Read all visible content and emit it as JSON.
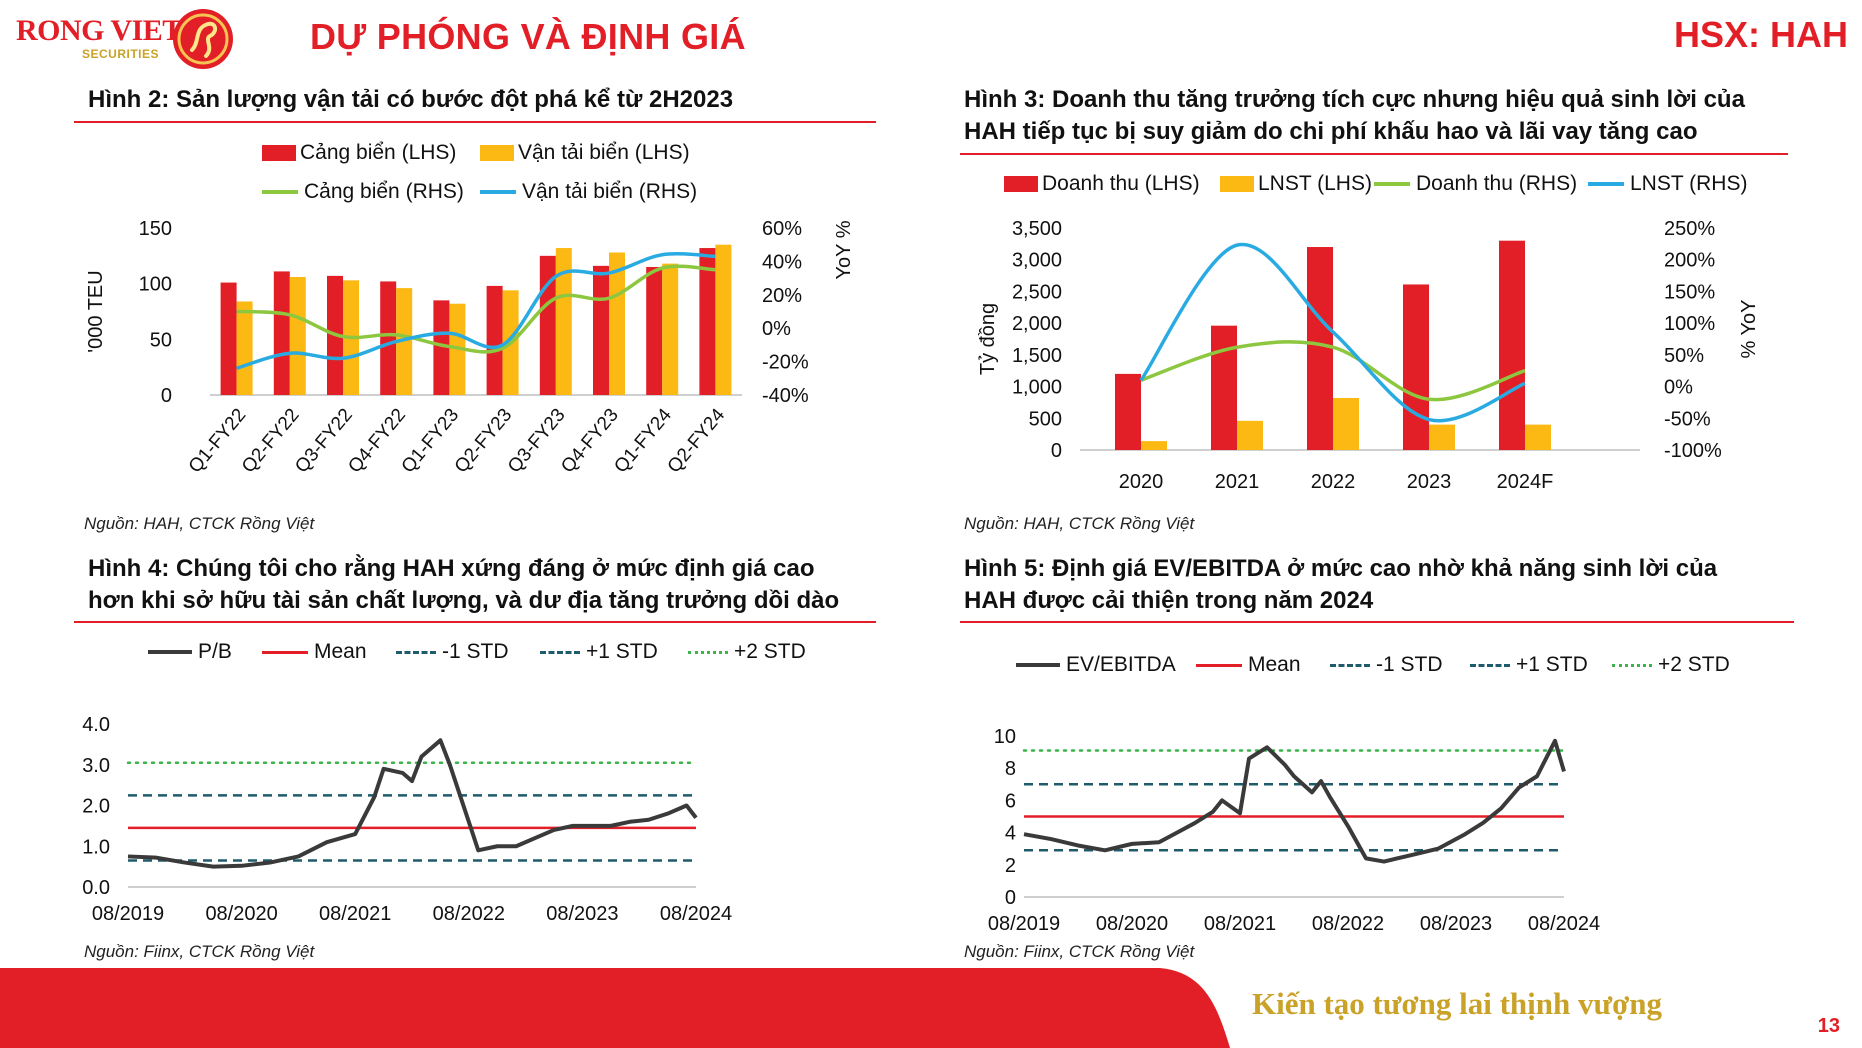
{
  "header": {
    "logo_text": "RONG VIET",
    "logo_sub": "SECURITIES",
    "title": "DỰ PHÓNG VÀ ĐỊNH GIÁ",
    "ticker": "HSX: HAH"
  },
  "footer": {
    "slogan": "Kiến tạo tương lai thịnh vượng",
    "page_number": "13"
  },
  "fig2": {
    "title": "Hình 2: Sản lượng vận tải có bước đột phá kể từ 2H2023",
    "source": "Nguồn: HAH, CTCK Rồng Việt",
    "legend": [
      "Cảng biển (LHS)",
      "Vận tải biển (LHS)",
      "Cảng biển (RHS)",
      "Vận tải biển (RHS)"
    ]
  },
  "fig3": {
    "title_line1": "Hình 3: Doanh thu tăng trưởng tích cực nhưng hiệu quả sinh lời của",
    "title_line2": "HAH tiếp tục bị suy giảm do chi phí khấu hao và lãi vay tăng cao",
    "source": "Nguồn: HAH, CTCK Rồng Việt",
    "legend": [
      "Doanh thu (LHS)",
      "LNST (LHS)",
      "Doanh thu (RHS)",
      "LNST (RHS)"
    ]
  },
  "fig4": {
    "title_line1": "Hình 4: Chúng tôi cho rằng HAH xứng đáng ở mức định giá cao",
    "title_line2": "hơn khi sở hữu tài sản chất lượng, và dư địa tăng trưởng dồi dào",
    "source": "Nguồn: Fiinx, CTCK Rồng Việt",
    "legend": [
      "P/B",
      "Mean",
      "-1 STD",
      "+1 STD",
      "+2 STD"
    ]
  },
  "fig5": {
    "title_line1": "Hình 5: Định giá EV/EBITDA ở mức cao nhờ khả năng sinh lời của",
    "title_line2": "HAH được cải thiện trong năm 2024",
    "source": "Nguồn: Fiinx, CTCK Rồng Việt",
    "legend": [
      "EV/EBITDA",
      "Mean",
      "-1 STD",
      "+1 STD",
      "+2 STD"
    ]
  },
  "colors": {
    "red": "#e21f26",
    "yellow": "#fdb913",
    "green": "#8dc63f",
    "blue": "#29abe2",
    "dark": "#3a3a3a",
    "teal_dash": "#1f5c6b",
    "green_dot": "#3cb44b",
    "gold": "#c9a227"
  },
  "chart_data": [
    {
      "id": "fig2",
      "type": "bar",
      "categories": [
        "Q1-FY22",
        "Q2-FY22",
        "Q3-FY22",
        "Q4-FY22",
        "Q1-FY23",
        "Q2-FY23",
        "Q3-FY23",
        "Q4-FY23",
        "Q1-FY24",
        "Q2-FY24"
      ],
      "series": [
        {
          "name": "Cảng biển (LHS)",
          "axis": "left",
          "kind": "bar",
          "values": [
            101,
            111,
            107,
            102,
            85,
            98,
            125,
            116,
            115,
            132
          ]
        },
        {
          "name": "Vận tải biển (LHS)",
          "axis": "left",
          "kind": "bar",
          "values": [
            84,
            106,
            103,
            96,
            82,
            94,
            132,
            128,
            118,
            135
          ]
        },
        {
          "name": "Cảng biển (RHS)",
          "axis": "right",
          "kind": "line",
          "values": [
            10,
            8,
            -5,
            -4,
            -11,
            -12,
            18,
            18,
            36,
            35
          ]
        },
        {
          "name": "Vận tải biển (RHS)",
          "axis": "right",
          "kind": "line",
          "values": [
            -24,
            -15,
            -18,
            -8,
            -3,
            -10,
            31,
            33,
            44,
            43
          ]
        }
      ],
      "ylabel": "'000 TEU",
      "y2label": "YoY %",
      "ylim": [
        0,
        150
      ],
      "y2lim": [
        -40,
        60
      ],
      "yticks": [
        "0",
        "50",
        "100",
        "150"
      ],
      "y2ticks": [
        "-40%",
        "-20%",
        "0%",
        "20%",
        "40%",
        "60%"
      ]
    },
    {
      "id": "fig3",
      "type": "bar",
      "categories": [
        "2020",
        "2021",
        "2022",
        "2023",
        "2024F"
      ],
      "series": [
        {
          "name": "Doanh thu (LHS)",
          "axis": "left",
          "kind": "bar",
          "values": [
            1200,
            1960,
            3200,
            2610,
            3300
          ]
        },
        {
          "name": "LNST (LHS)",
          "axis": "left",
          "kind": "bar",
          "values": [
            140,
            460,
            820,
            400,
            400
          ]
        },
        {
          "name": "Doanh thu (RHS)",
          "axis": "right",
          "kind": "line",
          "values": [
            10,
            62,
            62,
            -20,
            25
          ]
        },
        {
          "name": "LNST (RHS)",
          "axis": "right",
          "kind": "line",
          "values": [
            10,
            223,
            86,
            -52,
            5
          ]
        }
      ],
      "ylabel": "Tỷ đồng",
      "y2label": "% YoY",
      "ylim": [
        0,
        3500
      ],
      "y2lim": [
        -100,
        250
      ],
      "yticks": [
        "0",
        "500",
        "1,000",
        "1,500",
        "2,000",
        "2,500",
        "3,000",
        "3,500"
      ],
      "y2ticks": [
        "-100%",
        "-50%",
        "0%",
        "50%",
        "100%",
        "150%",
        "200%",
        "250%"
      ]
    },
    {
      "id": "fig4",
      "type": "line",
      "x_ticks": [
        "08/2019",
        "08/2020",
        "08/2021",
        "08/2022",
        "08/2023",
        "08/2024"
      ],
      "ylim": [
        0,
        4
      ],
      "yticks": [
        "0.0",
        "1.0",
        "2.0",
        "3.0",
        "4.0"
      ],
      "series": [
        {
          "name": "P/B",
          "points": [
            [
              "2019-08",
              0.75
            ],
            [
              "2019-11",
              0.72
            ],
            [
              "2020-02",
              0.6
            ],
            [
              "2020-05",
              0.5
            ],
            [
              "2020-08",
              0.52
            ],
            [
              "2020-11",
              0.6
            ],
            [
              "2021-02",
              0.75
            ],
            [
              "2021-05",
              1.1
            ],
            [
              "2021-08",
              1.3
            ],
            [
              "2021-10",
              2.2
            ],
            [
              "2021-11",
              2.9
            ],
            [
              "2022-01",
              2.8
            ],
            [
              "2022-02",
              2.6
            ],
            [
              "2022-03",
              3.2
            ],
            [
              "2022-05",
              3.6
            ],
            [
              "2022-06",
              3.0
            ],
            [
              "2022-07",
              2.3
            ],
            [
              "2022-08",
              1.6
            ],
            [
              "2022-09",
              0.9
            ],
            [
              "2022-11",
              1.0
            ],
            [
              "2023-01",
              1.0
            ],
            [
              "2023-03",
              1.2
            ],
            [
              "2023-05",
              1.4
            ],
            [
              "2023-07",
              1.5
            ],
            [
              "2023-09",
              1.5
            ],
            [
              "2023-11",
              1.5
            ],
            [
              "2024-01",
              1.6
            ],
            [
              "2024-03",
              1.65
            ],
            [
              "2024-05",
              1.8
            ],
            [
              "2024-07",
              2.0
            ],
            [
              "2024-08",
              1.7
            ]
          ]
        },
        {
          "name": "Mean",
          "value": 1.45
        },
        {
          "name": "-1 STD",
          "value": 0.65
        },
        {
          "name": "+1 STD",
          "value": 2.25
        },
        {
          "name": "+2 STD",
          "value": 3.05
        }
      ]
    },
    {
      "id": "fig5",
      "type": "line",
      "x_ticks": [
        "08/2019",
        "08/2020",
        "08/2021",
        "08/2022",
        "08/2023",
        "08/2024"
      ],
      "ylim": [
        0,
        10
      ],
      "yticks": [
        "0",
        "2",
        "4",
        "6",
        "8",
        "10"
      ],
      "series": [
        {
          "name": "EV/EBITDA",
          "points": [
            [
              "2019-08",
              3.9
            ],
            [
              "2019-11",
              3.6
            ],
            [
              "2020-02",
              3.2
            ],
            [
              "2020-05",
              2.9
            ],
            [
              "2020-08",
              3.3
            ],
            [
              "2020-11",
              3.4
            ],
            [
              "2021-01",
              4.0
            ],
            [
              "2021-03",
              4.6
            ],
            [
              "2021-05",
              5.3
            ],
            [
              "2021-06",
              6.0
            ],
            [
              "2021-08",
              5.2
            ],
            [
              "2021-09",
              8.6
            ],
            [
              "2021-11",
              9.3
            ],
            [
              "2022-01",
              8.2
            ],
            [
              "2022-02",
              7.5
            ],
            [
              "2022-04",
              6.5
            ],
            [
              "2022-05",
              7.2
            ],
            [
              "2022-06",
              6.2
            ],
            [
              "2022-08",
              4.4
            ],
            [
              "2022-10",
              2.4
            ],
            [
              "2022-12",
              2.2
            ],
            [
              "2023-03",
              2.6
            ],
            [
              "2023-06",
              3.0
            ],
            [
              "2023-09",
              3.9
            ],
            [
              "2023-11",
              4.6
            ],
            [
              "2024-01",
              5.5
            ],
            [
              "2024-03",
              6.8
            ],
            [
              "2024-05",
              7.5
            ],
            [
              "2024-07",
              9.7
            ],
            [
              "2024-08",
              7.8
            ]
          ]
        },
        {
          "name": "Mean",
          "value": 5.0
        },
        {
          "name": "-1 STD",
          "value": 2.9
        },
        {
          "name": "+1 STD",
          "value": 7.0
        },
        {
          "name": "+2 STD",
          "value": 9.1
        }
      ]
    }
  ]
}
